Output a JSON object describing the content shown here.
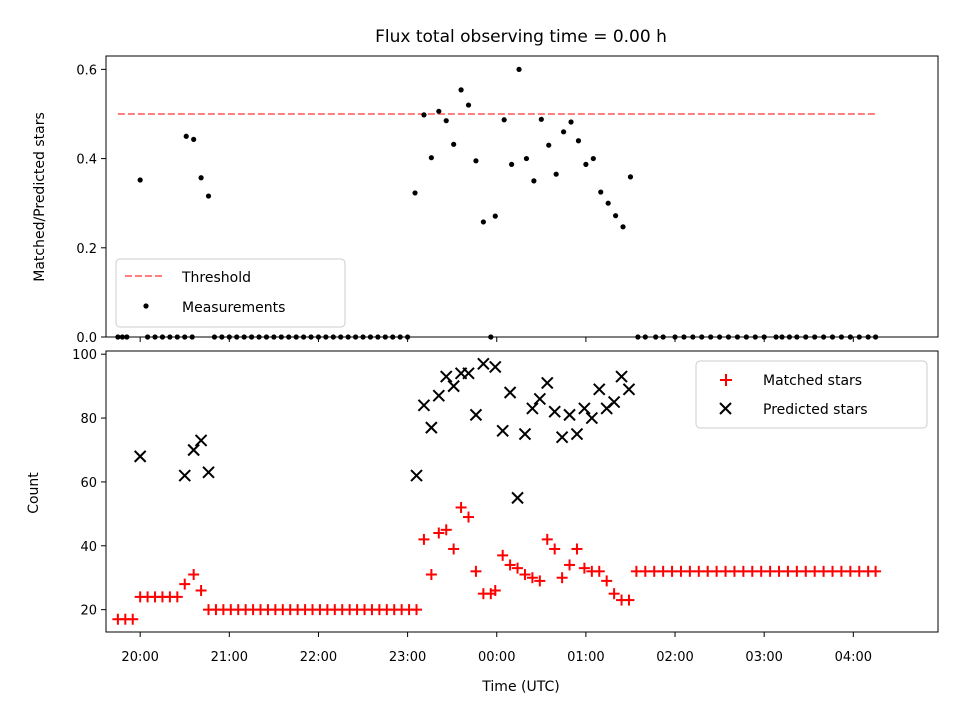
{
  "figure": {
    "title": "Flux total observing time = 0.00 h"
  },
  "chart_data": [
    {
      "type": "scatter",
      "name": "top-panel",
      "ylabel": "Matched/Predicted stars",
      "xlabel": "",
      "xlim": [
        "19:37",
        "04:57"
      ],
      "ylim": [
        0,
        0.63
      ],
      "yticks": [
        "0.0",
        "0.2",
        "0.4",
        "0.6"
      ],
      "ytick_values": [
        0,
        0.2,
        0.4,
        0.6
      ],
      "xtick_values": [
        "20:00",
        "21:00",
        "22:00",
        "23:00",
        "00:00",
        "01:00",
        "02:00",
        "03:00",
        "04:00"
      ],
      "legend": {
        "placement": "lower-left",
        "entries": [
          "Threshold",
          "Measurements"
        ]
      },
      "threshold": {
        "name": "Threshold",
        "value": 0.5,
        "x_start": "19:45",
        "x_end": "04:15",
        "color": "#ff7f7f",
        "style": "dashed"
      },
      "series": [
        {
          "name": "Measurements",
          "color": "#000000",
          "marker": "dot",
          "points": [
            [
              "19:45",
              0.0
            ],
            [
              "19:48",
              0.0
            ],
            [
              "19:51",
              0.0
            ],
            [
              "20:00",
              0.352
            ],
            [
              "20:05",
              0.0
            ],
            [
              "20:10",
              0.0
            ],
            [
              "20:15",
              0.0
            ],
            [
              "20:20",
              0.0
            ],
            [
              "20:25",
              0.0
            ],
            [
              "20:30",
              0.0
            ],
            [
              "20:31",
              0.45
            ],
            [
              "20:35",
              0.0
            ],
            [
              "20:36",
              0.443
            ],
            [
              "20:41",
              0.357
            ],
            [
              "20:46",
              0.316
            ],
            [
              "20:50",
              0.0
            ],
            [
              "20:55",
              0.0
            ],
            [
              "21:00",
              0.0
            ],
            [
              "21:05",
              0.0
            ],
            [
              "21:10",
              0.0
            ],
            [
              "21:15",
              0.0
            ],
            [
              "21:20",
              0.0
            ],
            [
              "21:25",
              0.0
            ],
            [
              "21:30",
              0.0
            ],
            [
              "21:35",
              0.0
            ],
            [
              "21:40",
              0.0
            ],
            [
              "21:45",
              0.0
            ],
            [
              "21:50",
              0.0
            ],
            [
              "21:55",
              0.0
            ],
            [
              "22:00",
              0.0
            ],
            [
              "22:05",
              0.0
            ],
            [
              "22:10",
              0.0
            ],
            [
              "22:15",
              0.0
            ],
            [
              "22:20",
              0.0
            ],
            [
              "22:25",
              0.0
            ],
            [
              "22:30",
              0.0
            ],
            [
              "22:35",
              0.0
            ],
            [
              "22:40",
              0.0
            ],
            [
              "22:45",
              0.0
            ],
            [
              "22:50",
              0.0
            ],
            [
              "22:55",
              0.0
            ],
            [
              "23:00",
              0.0
            ],
            [
              "23:05",
              0.323
            ],
            [
              "23:11",
              0.498
            ],
            [
              "23:16",
              0.402
            ],
            [
              "23:21",
              0.506
            ],
            [
              "23:26",
              0.485
            ],
            [
              "23:31",
              0.432
            ],
            [
              "23:36",
              0.554
            ],
            [
              "23:41",
              0.52
            ],
            [
              "23:46",
              0.395
            ],
            [
              "23:51",
              0.258
            ],
            [
              "23:56",
              0.0
            ],
            [
              "23:59",
              0.271
            ],
            [
              "00:05",
              0.487
            ],
            [
              "00:10",
              0.387
            ],
            [
              "00:15",
              0.6
            ],
            [
              "00:20",
              0.4
            ],
            [
              "00:25",
              0.35
            ],
            [
              "00:30",
              0.488
            ],
            [
              "00:35",
              0.43
            ],
            [
              "00:40",
              0.365
            ],
            [
              "00:45",
              0.46
            ],
            [
              "00:50",
              0.482
            ],
            [
              "00:55",
              0.44
            ],
            [
              "01:00",
              0.387
            ],
            [
              "01:05",
              0.4
            ],
            [
              "01:10",
              0.325
            ],
            [
              "01:15",
              0.3
            ],
            [
              "01:20",
              0.272
            ],
            [
              "01:25",
              0.247
            ],
            [
              "01:30",
              0.359
            ],
            [
              "01:35",
              0.0
            ],
            [
              "01:40",
              0.0
            ],
            [
              "01:47",
              0.0
            ],
            [
              "01:52",
              0.0
            ],
            [
              "02:00",
              0.0
            ],
            [
              "02:06",
              0.0
            ],
            [
              "02:12",
              0.0
            ],
            [
              "02:18",
              0.0
            ],
            [
              "02:24",
              0.0
            ],
            [
              "02:30",
              0.0
            ],
            [
              "02:36",
              0.0
            ],
            [
              "02:42",
              0.0
            ],
            [
              "02:48",
              0.0
            ],
            [
              "02:54",
              0.0
            ],
            [
              "03:00",
              0.0
            ],
            [
              "03:08",
              0.0
            ],
            [
              "03:12",
              0.0
            ],
            [
              "03:17",
              0.0
            ],
            [
              "03:22",
              0.0
            ],
            [
              "03:28",
              0.0
            ],
            [
              "03:34",
              0.0
            ],
            [
              "03:40",
              0.0
            ],
            [
              "03:46",
              0.0
            ],
            [
              "03:52",
              0.0
            ],
            [
              "03:58",
              0.0
            ],
            [
              "04:04",
              0.0
            ],
            [
              "04:10",
              0.0
            ],
            [
              "04:15",
              0.0
            ]
          ]
        }
      ]
    },
    {
      "type": "scatter",
      "name": "bottom-panel",
      "ylabel": "Count",
      "xlabel": "Time (UTC)",
      "xlim": [
        "19:37",
        "04:57"
      ],
      "ylim": [
        13,
        101
      ],
      "yticks": [
        "20",
        "40",
        "60",
        "80",
        "100"
      ],
      "ytick_values": [
        20,
        40,
        60,
        80,
        100
      ],
      "xticks": [
        "20:00",
        "21:00",
        "22:00",
        "23:00",
        "00:00",
        "01:00",
        "02:00",
        "03:00",
        "04:00"
      ],
      "legend": {
        "placement": "upper-right",
        "entries": [
          "Matched stars",
          "Predicted stars"
        ]
      },
      "series": [
        {
          "name": "Matched stars",
          "color": "#ff0000",
          "marker": "plus",
          "points": [
            [
              "19:45",
              17
            ],
            [
              "19:50",
              17
            ],
            [
              "19:55",
              17
            ],
            [
              "20:00",
              24
            ],
            [
              "20:05",
              24
            ],
            [
              "20:10",
              24
            ],
            [
              "20:15",
              24
            ],
            [
              "20:20",
              24
            ],
            [
              "20:25",
              24
            ],
            [
              "20:30",
              28
            ],
            [
              "20:36",
              31
            ],
            [
              "20:41",
              26
            ],
            [
              "20:46",
              20
            ],
            [
              "20:51",
              20
            ],
            [
              "20:56",
              20
            ],
            [
              "21:01",
              20
            ],
            [
              "21:06",
              20
            ],
            [
              "21:11",
              20
            ],
            [
              "21:16",
              20
            ],
            [
              "21:21",
              20
            ],
            [
              "21:26",
              20
            ],
            [
              "21:31",
              20
            ],
            [
              "21:36",
              20
            ],
            [
              "21:41",
              20
            ],
            [
              "21:46",
              20
            ],
            [
              "21:51",
              20
            ],
            [
              "21:56",
              20
            ],
            [
              "22:01",
              20
            ],
            [
              "22:06",
              20
            ],
            [
              "22:11",
              20
            ],
            [
              "22:16",
              20
            ],
            [
              "22:21",
              20
            ],
            [
              "22:26",
              20
            ],
            [
              "22:31",
              20
            ],
            [
              "22:36",
              20
            ],
            [
              "22:41",
              20
            ],
            [
              "22:46",
              20
            ],
            [
              "22:51",
              20
            ],
            [
              "22:56",
              20
            ],
            [
              "23:01",
              20
            ],
            [
              "23:06",
              20
            ],
            [
              "23:11",
              42
            ],
            [
              "23:16",
              31
            ],
            [
              "23:21",
              44
            ],
            [
              "23:26",
              45
            ],
            [
              "23:31",
              39
            ],
            [
              "23:36",
              52
            ],
            [
              "23:41",
              49
            ],
            [
              "23:46",
              32
            ],
            [
              "23:51",
              25
            ],
            [
              "23:56",
              25
            ],
            [
              "23:59",
              26
            ],
            [
              "00:04",
              37
            ],
            [
              "00:09",
              34
            ],
            [
              "00:14",
              33
            ],
            [
              "00:19",
              31
            ],
            [
              "00:24",
              30
            ],
            [
              "00:29",
              29
            ],
            [
              "00:34",
              42
            ],
            [
              "00:39",
              39
            ],
            [
              "00:44",
              30
            ],
            [
              "00:49",
              34
            ],
            [
              "00:54",
              39
            ],
            [
              "00:59",
              33
            ],
            [
              "01:04",
              32
            ],
            [
              "01:09",
              32
            ],
            [
              "01:14",
              29
            ],
            [
              "01:19",
              25
            ],
            [
              "01:24",
              23
            ],
            [
              "01:29",
              23
            ],
            [
              "01:34",
              32
            ],
            [
              "01:40",
              32
            ],
            [
              "01:46",
              32
            ],
            [
              "01:52",
              32
            ],
            [
              "01:58",
              32
            ],
            [
              "02:04",
              32
            ],
            [
              "02:10",
              32
            ],
            [
              "02:16",
              32
            ],
            [
              "02:22",
              32
            ],
            [
              "02:28",
              32
            ],
            [
              "02:34",
              32
            ],
            [
              "02:40",
              32
            ],
            [
              "02:46",
              32
            ],
            [
              "02:52",
              32
            ],
            [
              "02:58",
              32
            ],
            [
              "03:04",
              32
            ],
            [
              "03:10",
              32
            ],
            [
              "03:16",
              32
            ],
            [
              "03:22",
              32
            ],
            [
              "03:28",
              32
            ],
            [
              "03:34",
              32
            ],
            [
              "03:40",
              32
            ],
            [
              "03:46",
              32
            ],
            [
              "03:52",
              32
            ],
            [
              "03:58",
              32
            ],
            [
              "04:04",
              32
            ],
            [
              "04:10",
              32
            ],
            [
              "04:15",
              32
            ]
          ]
        },
        {
          "name": "Predicted stars",
          "color": "#000000",
          "marker": "x",
          "points": [
            [
              "20:00",
              68
            ],
            [
              "20:30",
              62
            ],
            [
              "20:36",
              70
            ],
            [
              "20:41",
              73
            ],
            [
              "20:46",
              63
            ],
            [
              "23:06",
              62
            ],
            [
              "23:11",
              84
            ],
            [
              "23:16",
              77
            ],
            [
              "23:21",
              87
            ],
            [
              "23:26",
              93
            ],
            [
              "23:31",
              90
            ],
            [
              "23:36",
              94
            ],
            [
              "23:41",
              94
            ],
            [
              "23:46",
              81
            ],
            [
              "23:51",
              97
            ],
            [
              "23:59",
              96
            ],
            [
              "00:04",
              76
            ],
            [
              "00:09",
              88
            ],
            [
              "00:14",
              55
            ],
            [
              "00:19",
              75
            ],
            [
              "00:24",
              83
            ],
            [
              "00:29",
              86
            ],
            [
              "00:34",
              91
            ],
            [
              "00:39",
              82
            ],
            [
              "00:44",
              74
            ],
            [
              "00:49",
              81
            ],
            [
              "00:54",
              75
            ],
            [
              "00:59",
              83
            ],
            [
              "01:04",
              80
            ],
            [
              "01:09",
              89
            ],
            [
              "01:14",
              83
            ],
            [
              "01:19",
              85
            ],
            [
              "01:24",
              93
            ],
            [
              "01:29",
              89
            ]
          ]
        }
      ]
    }
  ]
}
